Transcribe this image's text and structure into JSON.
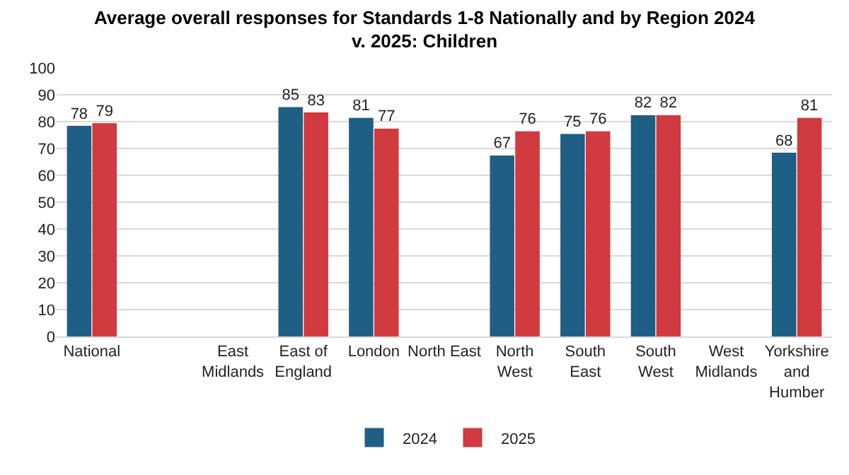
{
  "chart_data": {
    "type": "bar",
    "title": "Average overall responses for Standards 1-8 Nationally and by Region 2024\nv. 2025: Children",
    "categories": [
      "National",
      null,
      "East\nMidlands",
      "East of\nEngland",
      "London",
      "North East",
      "North\nWest",
      "South\nEast",
      "South\nWest",
      "West\nMidlands",
      "Yorkshire\nand\nHumber"
    ],
    "series": [
      {
        "name": "2024",
        "color": "#1f5f85",
        "values": [
          78,
          null,
          null,
          85,
          81,
          null,
          67,
          75,
          82,
          null,
          68
        ]
      },
      {
        "name": "2025",
        "color": "#d13a3e",
        "values": [
          79,
          null,
          null,
          83,
          77,
          null,
          76,
          76,
          82,
          null,
          81
        ]
      }
    ],
    "ylim": [
      0,
      100
    ],
    "yticks": [
      0,
      10,
      20,
      30,
      40,
      50,
      60,
      70,
      80,
      90,
      100
    ],
    "grid": "y",
    "legend": "bottom",
    "data_labels": true
  }
}
